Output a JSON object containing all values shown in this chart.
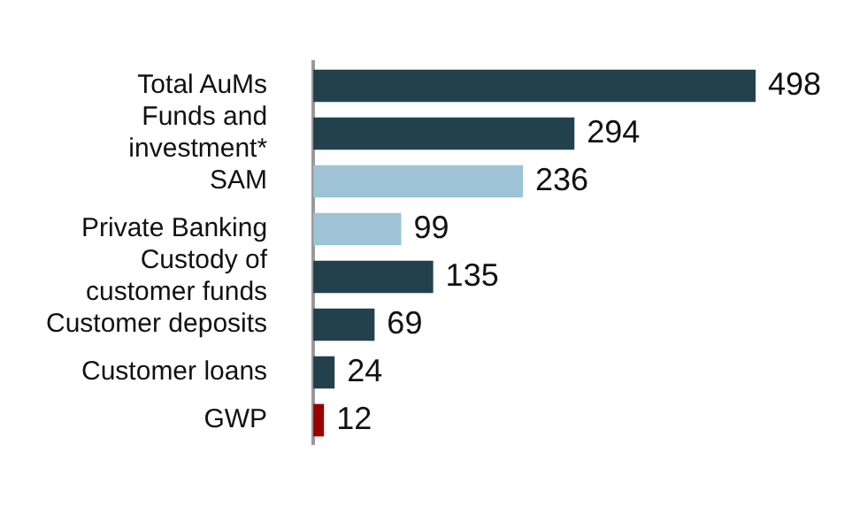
{
  "chart_data": {
    "type": "bar",
    "orientation": "horizontal",
    "categories": [
      "Total AuMs",
      "Funds and investment*",
      "SAM",
      "Private Banking",
      "Custody of customer funds",
      "Customer deposits",
      "Customer loans",
      "GWP"
    ],
    "values": [
      498,
      294,
      236,
      99,
      135,
      69,
      24,
      12
    ],
    "colors": [
      "#22414d",
      "#22414d",
      "#9dc3d4",
      "#9dc3d4",
      "#22414d",
      "#22414d",
      "#22414d",
      "#9b0000"
    ],
    "data_labels": true,
    "tick_labels": "y",
    "grid": false,
    "legend": false
  }
}
